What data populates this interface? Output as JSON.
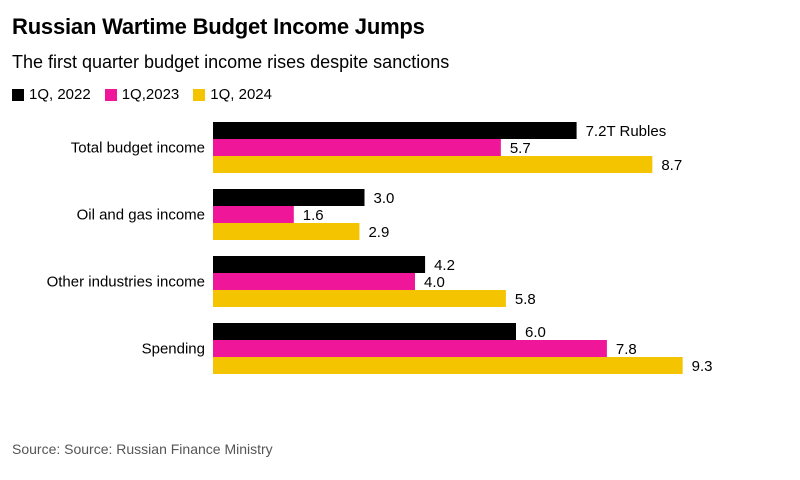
{
  "header": {
    "title": "Russian Wartime Budget Income Jumps",
    "subtitle": "The first quarter budget income rises despite sanctions"
  },
  "footer": {
    "source": "Source: Source: Russian Finance Ministry"
  },
  "chart_data": {
    "type": "bar",
    "orientation": "horizontal",
    "title": "Russian Wartime Budget Income Jumps",
    "subtitle": "The first quarter budget income rises despite sanctions",
    "categories": [
      "Total budget income",
      "Oil and gas income",
      "Other industries income",
      "Spending"
    ],
    "series": [
      {
        "name": "1Q, 2022",
        "color": "#000000",
        "values": [
          7.2,
          3.0,
          4.2,
          6.0
        ],
        "labels": [
          "7.2T Rubles",
          "3.0",
          "4.2",
          "6.0"
        ]
      },
      {
        "name": "1Q,2023",
        "color": "#f0169a",
        "values": [
          5.7,
          1.6,
          4.0,
          7.8
        ],
        "labels": [
          "5.7",
          "1.6",
          "4.0",
          "7.8"
        ]
      },
      {
        "name": "1Q, 2024",
        "color": "#f5c400",
        "values": [
          8.7,
          2.9,
          5.8,
          9.3
        ],
        "labels": [
          "8.7",
          "2.9",
          "5.8",
          "9.3"
        ]
      }
    ],
    "xlim": [
      0,
      10
    ],
    "grid": false,
    "legend_position": "top-left",
    "source": "Source: Source: Russian Finance Ministry"
  }
}
